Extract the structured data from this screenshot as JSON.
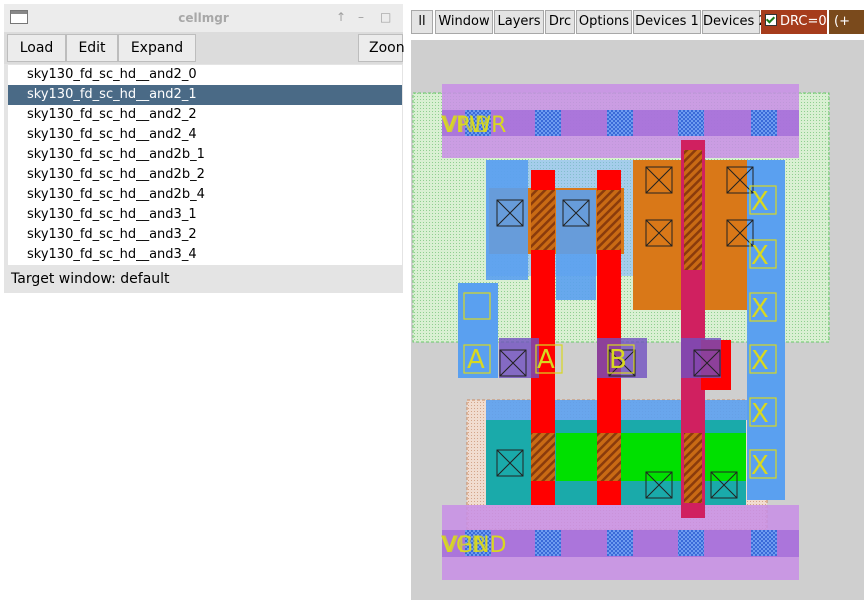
{
  "cellmgr": {
    "title": "cellmgr",
    "title_buttons": [
      "↑",
      "–",
      "□"
    ],
    "toolbar": [
      "Load",
      "Edit",
      "Expand",
      "Zoon"
    ],
    "cells": [
      {
        "name": "sky130_fd_sc_hd__and2_0",
        "selected": false
      },
      {
        "name": "sky130_fd_sc_hd__and2_1",
        "selected": true
      },
      {
        "name": "sky130_fd_sc_hd__and2_2",
        "selected": false
      },
      {
        "name": "sky130_fd_sc_hd__and2_4",
        "selected": false
      },
      {
        "name": "sky130_fd_sc_hd__and2b_1",
        "selected": false
      },
      {
        "name": "sky130_fd_sc_hd__and2b_2",
        "selected": false
      },
      {
        "name": "sky130_fd_sc_hd__and2b_4",
        "selected": false
      },
      {
        "name": "sky130_fd_sc_hd__and3_1",
        "selected": false
      },
      {
        "name": "sky130_fd_sc_hd__and3_2",
        "selected": false
      },
      {
        "name": "sky130_fd_sc_hd__and3_4",
        "selected": false
      }
    ],
    "status": "Target window:  default"
  },
  "magic": {
    "toolbar": [
      "ll",
      "Window",
      "Layers",
      "Drc",
      "Options",
      "Devices 1",
      "Devices 2"
    ],
    "drc_label": "DRC=0",
    "extra_label": "(+"
  },
  "layout_labels": {
    "vpwr": "VPWR",
    "vnb": "VNB",
    "a": "A",
    "b": "B",
    "x": "X",
    "vgnd": "VGND",
    "vpb": "VPB"
  },
  "colors": {
    "selection": "#4a6a86",
    "drc_bg": "#a63c1c",
    "nwell": "#8fdc8f",
    "poly": "#ff0000",
    "li": "#d97818",
    "met1": "#5aa0f0",
    "met2": "#b27ae6",
    "diff_n": "#1aaaaa",
    "diff_p": "#00e000",
    "label": "#d8d820"
  }
}
